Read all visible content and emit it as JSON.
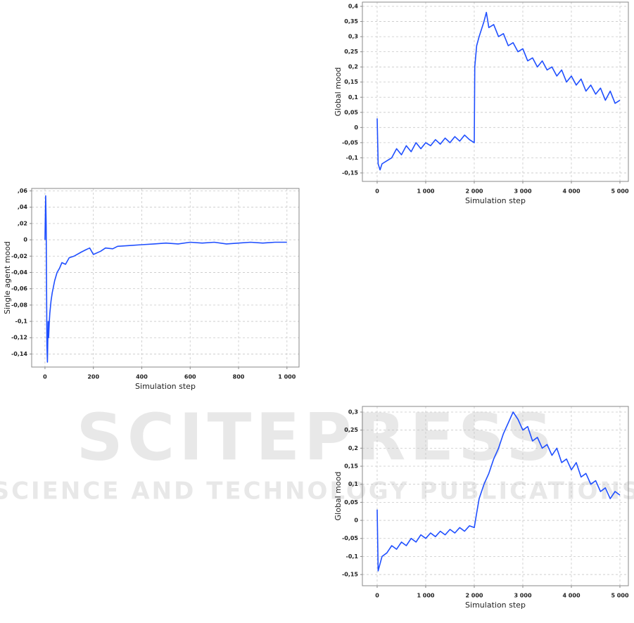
{
  "watermark": {
    "title": "SCITEPRESS",
    "subtitle": "SCIENCE AND TECHNOLOGY PUBLICATIONS"
  },
  "chart_data": [
    {
      "type": "line",
      "x_label": "Simulation step",
      "y_label": "Single agent mood",
      "grid": true,
      "x": [
        0,
        3,
        5,
        8,
        10,
        13,
        15,
        18,
        20,
        25,
        30,
        40,
        50,
        60,
        70,
        85,
        100,
        120,
        150,
        170,
        185,
        200,
        230,
        250,
        280,
        300,
        350,
        400,
        450,
        500,
        550,
        600,
        650,
        700,
        750,
        800,
        850,
        900,
        950,
        1000
      ],
      "series": [
        {
          "name": "Single agent mood",
          "color": "#1f4fff",
          "values": [
            0,
            0.054,
            0.02,
            -0.13,
            -0.15,
            -0.1,
            -0.12,
            -0.1,
            -0.09,
            -0.075,
            -0.065,
            -0.05,
            -0.04,
            -0.035,
            -0.028,
            -0.03,
            -0.022,
            -0.02,
            -0.015,
            -0.012,
            -0.01,
            -0.018,
            -0.014,
            -0.01,
            -0.011,
            -0.008,
            -0.007,
            -0.006,
            -0.005,
            -0.004,
            -0.005,
            -0.003,
            -0.004,
            -0.003,
            -0.005,
            -0.004,
            -0.003,
            -0.004,
            -0.003,
            -0.003
          ]
        }
      ],
      "xlim": [
        -55,
        1050
      ],
      "ylim": [
        -0.156,
        0.063
      ],
      "xticks": [
        0,
        200,
        400,
        600,
        800,
        {
          "value": 1000,
          "label": "1 000"
        }
      ],
      "yticks": [
        {
          "value": 0.06,
          "label": ",06"
        },
        {
          "value": 0.04,
          "label": ",04"
        },
        {
          "value": 0.02,
          "label": ",02"
        },
        0,
        {
          "value": -0.02,
          "label": "-0,02"
        },
        {
          "value": -0.04,
          "label": "-0,04"
        },
        {
          "value": -0.06,
          "label": "-0,06"
        },
        {
          "value": -0.08,
          "label": "-0,08"
        },
        {
          "value": -0.1,
          "label": "-0,1"
        },
        {
          "value": -0.12,
          "label": "-0,12"
        },
        {
          "value": -0.14,
          "label": "-0,14"
        }
      ]
    },
    {
      "type": "line",
      "x_label": "Simulation step",
      "y_label": "Global mood",
      "grid": true,
      "x": [
        0,
        20,
        60,
        100,
        200,
        300,
        400,
        500,
        600,
        700,
        800,
        900,
        1000,
        1100,
        1200,
        1300,
        1400,
        1500,
        1600,
        1700,
        1800,
        1900,
        2000,
        2010,
        2050,
        2100,
        2200,
        2250,
        2300,
        2400,
        2500,
        2600,
        2700,
        2800,
        2900,
        3000,
        3100,
        3200,
        3300,
        3400,
        3500,
        3600,
        3700,
        3800,
        3900,
        4000,
        4100,
        4200,
        4300,
        4400,
        4500,
        4600,
        4700,
        4800,
        4900,
        5000
      ],
      "series": [
        {
          "name": "Global mood",
          "color": "#1f4fff",
          "values": [
            0.03,
            -0.12,
            -0.14,
            -0.12,
            -0.11,
            -0.1,
            -0.07,
            -0.09,
            -0.06,
            -0.08,
            -0.05,
            -0.07,
            -0.05,
            -0.06,
            -0.04,
            -0.055,
            -0.035,
            -0.05,
            -0.03,
            -0.045,
            -0.025,
            -0.04,
            -0.05,
            0.2,
            0.27,
            0.3,
            0.35,
            0.38,
            0.33,
            0.34,
            0.3,
            0.31,
            0.27,
            0.28,
            0.25,
            0.26,
            0.22,
            0.23,
            0.2,
            0.22,
            0.19,
            0.2,
            0.17,
            0.19,
            0.15,
            0.17,
            0.14,
            0.16,
            0.12,
            0.14,
            0.11,
            0.13,
            0.09,
            0.12,
            0.08,
            0.09
          ]
        }
      ],
      "xlim": [
        -304,
        5174
      ],
      "ylim": [
        -0.178,
        0.414
      ],
      "xticks": [
        0,
        {
          "value": 1000,
          "label": "1 000"
        },
        {
          "value": 2000,
          "label": "2 000"
        },
        {
          "value": 3000,
          "label": "3 000"
        },
        {
          "value": 4000,
          "label": "4 000"
        },
        {
          "value": 5000,
          "label": "5 000"
        }
      ],
      "yticks": [
        {
          "value": 0.4,
          "label": "0,4"
        },
        {
          "value": 0.35,
          "label": "0,35"
        },
        {
          "value": 0.3,
          "label": "0,3"
        },
        {
          "value": 0.25,
          "label": "0,25"
        },
        {
          "value": 0.2,
          "label": "0,2"
        },
        {
          "value": 0.15,
          "label": "0,15"
        },
        {
          "value": 0.1,
          "label": "0,1"
        },
        {
          "value": 0.05,
          "label": "0,05"
        },
        0,
        {
          "value": -0.05,
          "label": "-0,05"
        },
        {
          "value": -0.1,
          "label": "-0,1"
        },
        {
          "value": -0.15,
          "label": "-0,15"
        }
      ]
    },
    {
      "type": "line",
      "x_label": "Simulation step",
      "y_label": "Global mood",
      "grid": true,
      "x": [
        0,
        20,
        60,
        100,
        200,
        300,
        400,
        500,
        600,
        700,
        800,
        900,
        1000,
        1100,
        1200,
        1300,
        1400,
        1500,
        1600,
        1700,
        1800,
        1900,
        2000,
        2050,
        2100,
        2200,
        2300,
        2400,
        2500,
        2600,
        2700,
        2800,
        2900,
        3000,
        3100,
        3200,
        3300,
        3400,
        3500,
        3600,
        3700,
        3800,
        3900,
        4000,
        4100,
        4200,
        4300,
        4400,
        4500,
        4600,
        4700,
        4800,
        4900,
        5000
      ],
      "series": [
        {
          "name": "Global mood",
          "color": "#1f4fff",
          "values": [
            0.03,
            -0.14,
            -0.12,
            -0.1,
            -0.09,
            -0.07,
            -0.08,
            -0.06,
            -0.07,
            -0.05,
            -0.06,
            -0.04,
            -0.05,
            -0.035,
            -0.045,
            -0.03,
            -0.04,
            -0.025,
            -0.035,
            -0.02,
            -0.03,
            -0.015,
            -0.02,
            0.02,
            0.06,
            0.1,
            0.13,
            0.17,
            0.2,
            0.24,
            0.27,
            0.3,
            0.28,
            0.25,
            0.26,
            0.22,
            0.23,
            0.2,
            0.21,
            0.18,
            0.2,
            0.16,
            0.17,
            0.14,
            0.16,
            0.12,
            0.13,
            0.1,
            0.11,
            0.08,
            0.09,
            0.06,
            0.08,
            0.07
          ]
        }
      ],
      "xlim": [
        -304,
        5174
      ],
      "ylim": [
        -0.181,
        0.3156
      ],
      "xticks": [
        0,
        {
          "value": 1000,
          "label": "1 000"
        },
        {
          "value": 2000,
          "label": "2 000"
        },
        {
          "value": 3000,
          "label": "3 000"
        },
        {
          "value": 4000,
          "label": "4 000"
        },
        {
          "value": 5000,
          "label": "5 000"
        }
      ],
      "yticks": [
        {
          "value": 0.3,
          "label": "0,3"
        },
        {
          "value": 0.25,
          "label": "0,25"
        },
        {
          "value": 0.2,
          "label": "0,2"
        },
        {
          "value": 0.15,
          "label": "0,15"
        },
        {
          "value": 0.1,
          "label": "0,1"
        },
        {
          "value": 0.05,
          "label": "0,05"
        },
        0,
        {
          "value": -0.05,
          "label": "-0,05"
        },
        {
          "value": -0.1,
          "label": "-0,1"
        },
        {
          "value": -0.15,
          "label": "-0,15"
        }
      ]
    }
  ]
}
